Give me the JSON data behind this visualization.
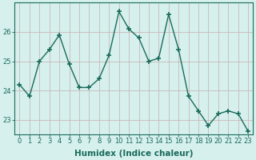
{
  "x": [
    0,
    1,
    2,
    3,
    4,
    5,
    6,
    7,
    8,
    9,
    10,
    11,
    12,
    13,
    14,
    15,
    16,
    17,
    18,
    19,
    20,
    21,
    22,
    23
  ],
  "y": [
    24.2,
    23.8,
    25.0,
    25.4,
    25.9,
    24.9,
    24.1,
    24.1,
    24.4,
    25.2,
    26.7,
    26.1,
    25.8,
    25.0,
    25.1,
    26.6,
    25.4,
    23.8,
    23.3,
    22.8,
    23.2,
    23.3,
    23.2,
    22.6
  ],
  "line_color": "#1a6b5a",
  "marker": "+",
  "marker_size": 4,
  "marker_lw": 1.2,
  "bg_color": "#d6f0ee",
  "grid_color_v": "#c8b8b8",
  "grid_color_h": "#c8b8b8",
  "xlabel": "Humidex (Indice chaleur)",
  "xlim": [
    -0.5,
    23.5
  ],
  "ylim": [
    22.5,
    27.0
  ],
  "yticks": [
    23,
    24,
    25,
    26
  ],
  "xticks": [
    0,
    1,
    2,
    3,
    4,
    5,
    6,
    7,
    8,
    9,
    10,
    11,
    12,
    13,
    14,
    15,
    16,
    17,
    18,
    19,
    20,
    21,
    22,
    23
  ],
  "tick_color": "#1a6b5a",
  "label_fontsize": 7.5,
  "tick_fontsize": 6,
  "axis_color": "#1a6b5a",
  "linewidth": 1.0
}
